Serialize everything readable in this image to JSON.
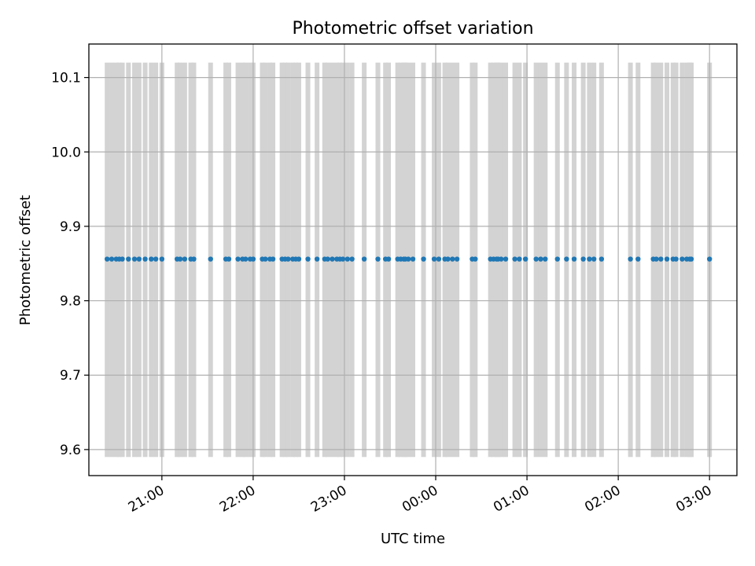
{
  "chart_data": {
    "type": "scatter",
    "title": "Photometric offset variation",
    "xlabel": "UTC time",
    "ylabel": "Photometric offset",
    "xlim": [
      "20:12",
      "03:18"
    ],
    "ylim": [
      9.565,
      10.145
    ],
    "x_ticks": [
      "21:00",
      "22:00",
      "23:00",
      "00:00",
      "01:00",
      "02:00",
      "03:00"
    ],
    "y_ticks": [
      "9.6",
      "9.7",
      "9.8",
      "9.9",
      "10.0",
      "10.1"
    ],
    "grid": true,
    "background_bars": {
      "color": "#d3d3d3",
      "y_range": [
        9.59,
        10.12
      ],
      "times": [
        "20:24",
        "20:27",
        "20:30",
        "20:32",
        "20:34",
        "20:38",
        "20:42",
        "20:45",
        "20:49",
        "20:53",
        "20:56",
        "21:00",
        "21:10",
        "21:12",
        "21:15",
        "21:19",
        "21:21",
        "21:32",
        "21:42",
        "21:44",
        "21:50",
        "21:53",
        "21:55",
        "21:58",
        "22:00",
        "22:06",
        "22:08",
        "22:11",
        "22:13",
        "22:19",
        "22:21",
        "22:23",
        "22:26",
        "22:28",
        "22:30",
        "22:36",
        "22:42",
        "22:47",
        "22:49",
        "22:52",
        "22:55",
        "22:57",
        "22:59",
        "23:02",
        "23:05",
        "23:13",
        "23:22",
        "23:27",
        "23:29",
        "23:35",
        "23:37",
        "23:39",
        "23:40",
        "23:42",
        "23:45",
        "23:52",
        "23:59",
        "24:02",
        "24:06",
        "24:08",
        "24:11",
        "24:14",
        "24:24",
        "24:26",
        "24:36",
        "24:38",
        "24:40",
        "24:41",
        "24:43",
        "24:46",
        "24:52",
        "24:55",
        "24:59",
        "25:06",
        "25:09",
        "25:12",
        "25:20",
        "25:26",
        "25:31",
        "25:37",
        "25:41",
        "25:44",
        "25:49",
        "26:08",
        "26:13",
        "26:23",
        "26:25",
        "26:28",
        "26:32",
        "26:36",
        "26:38",
        "26:42",
        "26:45",
        "26:47",
        "26:48",
        "27:00"
      ]
    },
    "series": [
      {
        "color": "#1f77b4",
        "y": 9.856,
        "x": [
          "20:24",
          "20:27",
          "20:30",
          "20:32",
          "20:34",
          "20:38",
          "20:42",
          "20:45",
          "20:49",
          "20:53",
          "20:56",
          "21:00",
          "21:10",
          "21:12",
          "21:15",
          "21:19",
          "21:21",
          "21:32",
          "21:42",
          "21:44",
          "21:50",
          "21:53",
          "21:55",
          "21:58",
          "22:00",
          "22:06",
          "22:08",
          "22:11",
          "22:13",
          "22:19",
          "22:21",
          "22:23",
          "22:26",
          "22:28",
          "22:30",
          "22:36",
          "22:42",
          "22:47",
          "22:49",
          "22:52",
          "22:55",
          "22:57",
          "22:59",
          "23:02",
          "23:05",
          "23:13",
          "23:22",
          "23:27",
          "23:29",
          "23:35",
          "23:37",
          "23:39",
          "23:40",
          "23:42",
          "23:45",
          "23:52",
          "23:59",
          "24:02",
          "24:06",
          "24:08",
          "24:11",
          "24:14",
          "24:24",
          "24:26",
          "24:36",
          "24:38",
          "24:40",
          "24:41",
          "24:43",
          "24:46",
          "24:52",
          "24:55",
          "24:59",
          "25:06",
          "25:09",
          "25:12",
          "25:20",
          "25:26",
          "25:31",
          "25:37",
          "25:41",
          "25:44",
          "25:49",
          "26:08",
          "26:13",
          "26:23",
          "26:25",
          "26:28",
          "26:32",
          "26:36",
          "26:38",
          "26:42",
          "26:45",
          "26:47",
          "26:48",
          "27:00"
        ]
      }
    ]
  }
}
